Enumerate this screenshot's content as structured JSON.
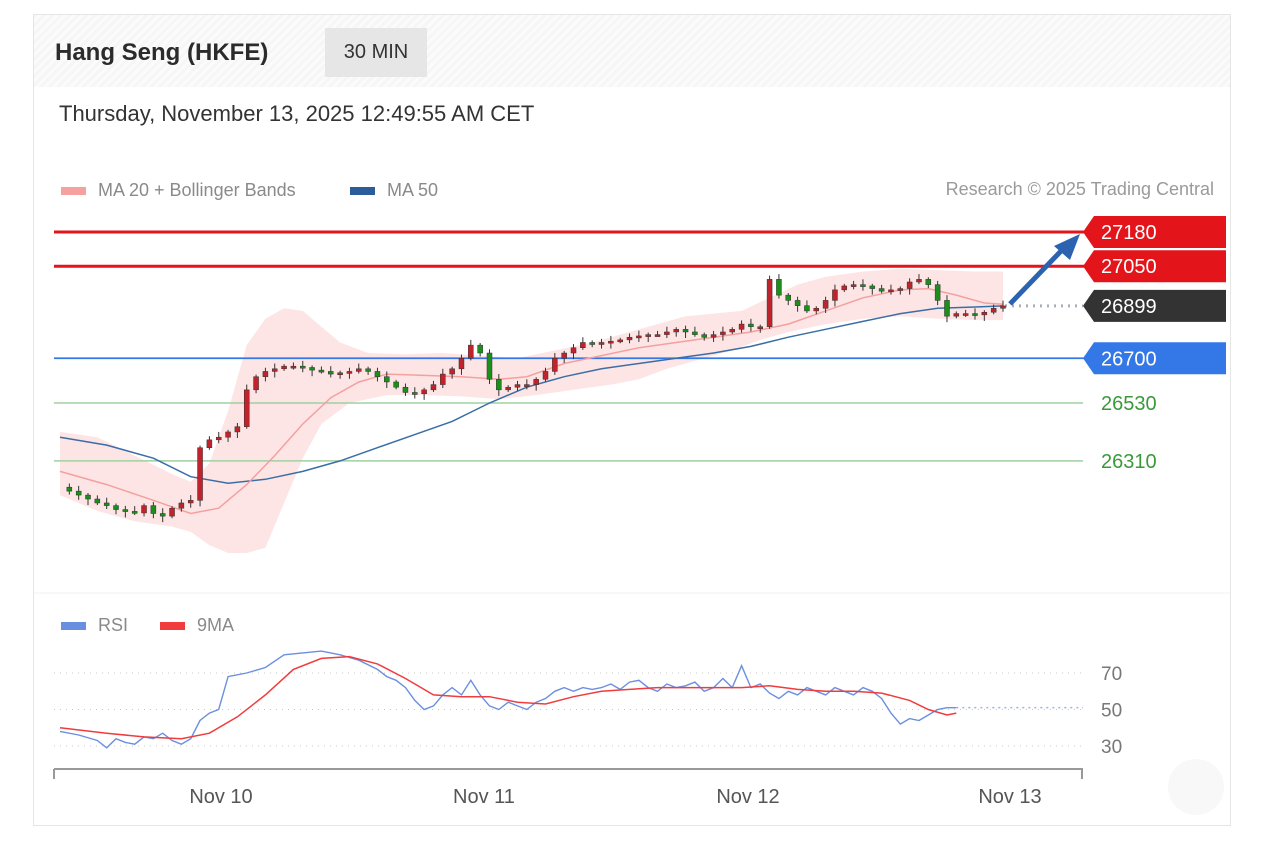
{
  "header": {
    "title": "Hang Seng (HKFE)",
    "timeframe": "30 MIN",
    "datetime": "Thursday, November 13, 2025 12:49:55 AM CET"
  },
  "legend": {
    "ma20_bb": "MA 20 + Bollinger Bands",
    "ma50": "MA 50",
    "credit": "Research © 2025 Trading Central"
  },
  "rsi_legend": {
    "rsi": "RSI",
    "ma9": "9MA"
  },
  "colors": {
    "bull": "#e8101a",
    "bear": "#1a8f1a",
    "candle_body": "#c0232b",
    "resistance": "#e4141b",
    "support_blue": "#3478e8",
    "support_green": "#3a9a3a",
    "current": "#333333",
    "ma50": "#3a6ea5",
    "ma20": "#f4a0a0",
    "band": "#fde0e0",
    "rsi": "#6b8fe0",
    "ma9": "#f03c3c",
    "arrow": "#2b63b0"
  },
  "chart_data": {
    "type": "line",
    "title": "Hang Seng (HKFE)",
    "timeframe": "30 MIN",
    "x_labels": [
      "Nov 10",
      "Nov 11",
      "Nov 12",
      "Nov 13"
    ],
    "ylim": [
      25950,
      27350
    ],
    "levels": [
      {
        "value": 27180,
        "label": "27180",
        "kind": "resistance"
      },
      {
        "value": 27050,
        "label": "27050",
        "kind": "resistance"
      },
      {
        "value": 26899,
        "label": "26899",
        "kind": "current"
      },
      {
        "value": 26700,
        "label": "26700",
        "kind": "support"
      },
      {
        "value": 26530,
        "label": "26530",
        "kind": "pivot"
      },
      {
        "value": 26310,
        "label": "26310",
        "kind": "pivot"
      }
    ],
    "forecast": {
      "from": 26899,
      "to": 27180,
      "direction": "up"
    },
    "price_path": [
      [
        0,
        26210
      ],
      [
        2,
        26195
      ],
      [
        4,
        26180
      ],
      [
        6,
        26165
      ],
      [
        8,
        26150
      ],
      [
        10,
        26140
      ],
      [
        12,
        26125
      ],
      [
        14,
        26118
      ],
      [
        16,
        26112
      ],
      [
        18,
        26140
      ],
      [
        20,
        26110
      ],
      [
        22,
        26100
      ],
      [
        24,
        26130
      ],
      [
        26,
        26150
      ],
      [
        28,
        26160
      ],
      [
        30,
        26360
      ],
      [
        32,
        26390
      ],
      [
        34,
        26400
      ],
      [
        36,
        26420
      ],
      [
        38,
        26440
      ],
      [
        40,
        26580
      ],
      [
        42,
        26630
      ],
      [
        44,
        26650
      ],
      [
        46,
        26660
      ],
      [
        48,
        26670
      ],
      [
        50,
        26670
      ],
      [
        52,
        26665
      ],
      [
        54,
        26655
      ],
      [
        56,
        26650
      ],
      [
        58,
        26640
      ],
      [
        60,
        26645
      ],
      [
        62,
        26650
      ],
      [
        64,
        26660
      ],
      [
        66,
        26650
      ],
      [
        68,
        26630
      ],
      [
        70,
        26610
      ],
      [
        72,
        26590
      ],
      [
        74,
        26570
      ],
      [
        76,
        26565
      ],
      [
        78,
        26580
      ],
      [
        80,
        26600
      ],
      [
        82,
        26640
      ],
      [
        84,
        26660
      ],
      [
        86,
        26700
      ],
      [
        88,
        26750
      ],
      [
        90,
        26720
      ],
      [
        92,
        26620
      ],
      [
        94,
        26580
      ],
      [
        96,
        26590
      ],
      [
        98,
        26600
      ],
      [
        100,
        26600
      ],
      [
        102,
        26620
      ],
      [
        104,
        26650
      ],
      [
        106,
        26700
      ],
      [
        108,
        26720
      ],
      [
        110,
        26740
      ],
      [
        112,
        26760
      ],
      [
        114,
        26755
      ],
      [
        116,
        26760
      ],
      [
        118,
        26765
      ],
      [
        120,
        26770
      ],
      [
        122,
        26780
      ],
      [
        124,
        26785
      ],
      [
        126,
        26790
      ],
      [
        128,
        26790
      ],
      [
        130,
        26800
      ],
      [
        132,
        26810
      ],
      [
        134,
        26800
      ],
      [
        136,
        26790
      ],
      [
        138,
        26780
      ],
      [
        140,
        26790
      ],
      [
        142,
        26800
      ],
      [
        144,
        26810
      ],
      [
        146,
        26830
      ],
      [
        148,
        26820
      ],
      [
        150,
        26820
      ],
      [
        152,
        27000
      ],
      [
        154,
        26940
      ],
      [
        156,
        26920
      ],
      [
        158,
        26900
      ],
      [
        160,
        26880
      ],
      [
        162,
        26890
      ],
      [
        164,
        26920
      ],
      [
        166,
        26960
      ],
      [
        168,
        26975
      ],
      [
        170,
        26980
      ],
      [
        172,
        26975
      ],
      [
        174,
        26965
      ],
      [
        176,
        26955
      ],
      [
        178,
        26960
      ],
      [
        180,
        26965
      ],
      [
        182,
        26990
      ],
      [
        184,
        27000
      ],
      [
        186,
        26980
      ],
      [
        188,
        26920
      ],
      [
        190,
        26860
      ],
      [
        192,
        26870
      ],
      [
        194,
        26870
      ],
      [
        196,
        26865
      ],
      [
        198,
        26875
      ],
      [
        200,
        26890
      ],
      [
        202,
        26899
      ]
    ],
    "ma20_path": [
      [
        0,
        26270
      ],
      [
        10,
        26220
      ],
      [
        20,
        26160
      ],
      [
        28,
        26110
      ],
      [
        34,
        26130
      ],
      [
        40,
        26220
      ],
      [
        46,
        26330
      ],
      [
        52,
        26450
      ],
      [
        58,
        26550
      ],
      [
        64,
        26610
      ],
      [
        70,
        26640
      ],
      [
        78,
        26635
      ],
      [
        86,
        26630
      ],
      [
        94,
        26620
      ],
      [
        100,
        26630
      ],
      [
        108,
        26680
      ],
      [
        116,
        26710
      ],
      [
        124,
        26740
      ],
      [
        132,
        26760
      ],
      [
        140,
        26780
      ],
      [
        148,
        26800
      ],
      [
        156,
        26830
      ],
      [
        164,
        26880
      ],
      [
        172,
        26930
      ],
      [
        180,
        26960
      ],
      [
        186,
        26965
      ],
      [
        192,
        26940
      ],
      [
        198,
        26910
      ],
      [
        202,
        26905
      ]
    ],
    "ma50_path": [
      [
        0,
        26400
      ],
      [
        10,
        26370
      ],
      [
        20,
        26320
      ],
      [
        28,
        26250
      ],
      [
        36,
        26225
      ],
      [
        44,
        26240
      ],
      [
        52,
        26270
      ],
      [
        60,
        26310
      ],
      [
        68,
        26360
      ],
      [
        76,
        26410
      ],
      [
        84,
        26460
      ],
      [
        92,
        26530
      ],
      [
        100,
        26590
      ],
      [
        108,
        26630
      ],
      [
        116,
        26660
      ],
      [
        124,
        26680
      ],
      [
        132,
        26700
      ],
      [
        140,
        26720
      ],
      [
        148,
        26745
      ],
      [
        156,
        26780
      ],
      [
        164,
        26810
      ],
      [
        172,
        26840
      ],
      [
        180,
        26870
      ],
      [
        188,
        26890
      ],
      [
        196,
        26895
      ],
      [
        202,
        26899
      ]
    ],
    "band_upper": [
      [
        0,
        26420
      ],
      [
        8,
        26400
      ],
      [
        16,
        26330
      ],
      [
        24,
        26260
      ],
      [
        28,
        26230
      ],
      [
        32,
        26300
      ],
      [
        36,
        26500
      ],
      [
        40,
        26750
      ],
      [
        44,
        26850
      ],
      [
        48,
        26890
      ],
      [
        52,
        26880
      ],
      [
        56,
        26820
      ],
      [
        60,
        26760
      ],
      [
        66,
        26720
      ],
      [
        74,
        26715
      ],
      [
        82,
        26720
      ],
      [
        90,
        26710
      ],
      [
        98,
        26700
      ],
      [
        106,
        26730
      ],
      [
        114,
        26760
      ],
      [
        122,
        26800
      ],
      [
        128,
        26830
      ],
      [
        134,
        26860
      ],
      [
        140,
        26870
      ],
      [
        146,
        26880
      ],
      [
        152,
        26930
      ],
      [
        158,
        26980
      ],
      [
        164,
        27010
      ],
      [
        172,
        27030
      ],
      [
        180,
        27040
      ],
      [
        188,
        27035
      ],
      [
        196,
        27030
      ],
      [
        202,
        27030
      ]
    ],
    "band_lower": [
      [
        0,
        26180
      ],
      [
        8,
        26120
      ],
      [
        16,
        26080
      ],
      [
        24,
        26060
      ],
      [
        28,
        26040
      ],
      [
        32,
        25990
      ],
      [
        36,
        25960
      ],
      [
        40,
        25960
      ],
      [
        44,
        25980
      ],
      [
        48,
        26150
      ],
      [
        52,
        26320
      ],
      [
        56,
        26450
      ],
      [
        62,
        26530
      ],
      [
        70,
        26560
      ],
      [
        78,
        26560
      ],
      [
        86,
        26555
      ],
      [
        94,
        26545
      ],
      [
        102,
        26560
      ],
      [
        110,
        26580
      ],
      [
        118,
        26600
      ],
      [
        124,
        26620
      ],
      [
        130,
        26660
      ],
      [
        136,
        26690
      ],
      [
        144,
        26730
      ],
      [
        150,
        26770
      ],
      [
        156,
        26800
      ],
      [
        164,
        26830
      ],
      [
        172,
        26850
      ],
      [
        180,
        26860
      ],
      [
        188,
        26850
      ],
      [
        196,
        26845
      ],
      [
        202,
        26845
      ]
    ],
    "rsi": {
      "ylim": [
        20,
        85
      ],
      "ticks": [
        30,
        50,
        70
      ],
      "rsi_path": [
        [
          0,
          38
        ],
        [
          4,
          36
        ],
        [
          8,
          33
        ],
        [
          10,
          29
        ],
        [
          12,
          34
        ],
        [
          14,
          32
        ],
        [
          16,
          31
        ],
        [
          18,
          35
        ],
        [
          20,
          34
        ],
        [
          22,
          37
        ],
        [
          24,
          33
        ],
        [
          26,
          31
        ],
        [
          28,
          34
        ],
        [
          30,
          44
        ],
        [
          32,
          48
        ],
        [
          34,
          50
        ],
        [
          36,
          68
        ],
        [
          40,
          70
        ],
        [
          44,
          73
        ],
        [
          48,
          80
        ],
        [
          52,
          81
        ],
        [
          56,
          82
        ],
        [
          60,
          80
        ],
        [
          64,
          77
        ],
        [
          68,
          72
        ],
        [
          70,
          68
        ],
        [
          72,
          66
        ],
        [
          74,
          62
        ],
        [
          76,
          55
        ],
        [
          78,
          50
        ],
        [
          80,
          52
        ],
        [
          82,
          58
        ],
        [
          84,
          62
        ],
        [
          86,
          58
        ],
        [
          88,
          66
        ],
        [
          90,
          58
        ],
        [
          92,
          52
        ],
        [
          94,
          50
        ],
        [
          96,
          54
        ],
        [
          98,
          52
        ],
        [
          100,
          50
        ],
        [
          102,
          54
        ],
        [
          104,
          56
        ],
        [
          106,
          60
        ],
        [
          108,
          62
        ],
        [
          110,
          60
        ],
        [
          112,
          62
        ],
        [
          114,
          61
        ],
        [
          116,
          62
        ],
        [
          118,
          64
        ],
        [
          120,
          61
        ],
        [
          122,
          65
        ],
        [
          124,
          66
        ],
        [
          126,
          62
        ],
        [
          128,
          60
        ],
        [
          130,
          64
        ],
        [
          132,
          62
        ],
        [
          134,
          63
        ],
        [
          136,
          65
        ],
        [
          138,
          60
        ],
        [
          140,
          62
        ],
        [
          142,
          67
        ],
        [
          144,
          62
        ],
        [
          146,
          74
        ],
        [
          148,
          62
        ],
        [
          150,
          64
        ],
        [
          152,
          59
        ],
        [
          154,
          56
        ],
        [
          156,
          60
        ],
        [
          158,
          58
        ],
        [
          160,
          62
        ],
        [
          162,
          60
        ],
        [
          164,
          58
        ],
        [
          166,
          62
        ],
        [
          168,
          60
        ],
        [
          170,
          58
        ],
        [
          172,
          62
        ],
        [
          174,
          60
        ],
        [
          176,
          56
        ],
        [
          178,
          48
        ],
        [
          180,
          42
        ],
        [
          182,
          45
        ],
        [
          184,
          44
        ],
        [
          186,
          47
        ],
        [
          188,
          50
        ],
        [
          190,
          51
        ],
        [
          192,
          51
        ]
      ],
      "ma9_path": [
        [
          0,
          40
        ],
        [
          10,
          37
        ],
        [
          18,
          35
        ],
        [
          26,
          34
        ],
        [
          32,
          37
        ],
        [
          38,
          46
        ],
        [
          44,
          58
        ],
        [
          50,
          72
        ],
        [
          56,
          78
        ],
        [
          62,
          79
        ],
        [
          68,
          75
        ],
        [
          74,
          67
        ],
        [
          80,
          58
        ],
        [
          86,
          57
        ],
        [
          92,
          57
        ],
        [
          98,
          54
        ],
        [
          104,
          53
        ],
        [
          110,
          57
        ],
        [
          116,
          60
        ],
        [
          122,
          61
        ],
        [
          128,
          62
        ],
        [
          134,
          62
        ],
        [
          140,
          62
        ],
        [
          146,
          62
        ],
        [
          152,
          63
        ],
        [
          158,
          61
        ],
        [
          164,
          60
        ],
        [
          170,
          60
        ],
        [
          176,
          59
        ],
        [
          182,
          55
        ],
        [
          186,
          50
        ],
        [
          190,
          47
        ],
        [
          192,
          48
        ]
      ]
    }
  }
}
